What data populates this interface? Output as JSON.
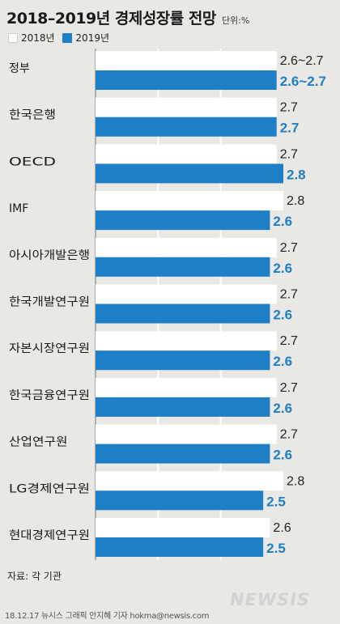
{
  "title": "2018–2019년 경제성장률 전망",
  "unit": "단위:%",
  "legend": [
    "2018년",
    "2019년"
  ],
  "colors": {
    "y2018": "#ffffff",
    "y2019": "#1f7fc6",
    "background": "#e9e8e4",
    "grid": "#ffffff"
  },
  "source": "자료: 각 기관",
  "credit": "18.12.17 뉴시스 그래픽 안지혜 기자 hokma@newsis.com",
  "watermark": "NEWSIS",
  "chart_data": {
    "type": "bar",
    "orientation": "horizontal",
    "title": "2018–2019년 경제성장률 전망",
    "categories": [
      "정부",
      "한국은행",
      "OECD",
      "IMF",
      "아시아개발은행",
      "한국개발연구원",
      "자본시장연구원",
      "한국금융연구원",
      "산업연구원",
      "LG경제연구원",
      "현대경제연구원"
    ],
    "series": [
      {
        "name": "2018년",
        "values": [
          2.7,
          2.7,
          2.7,
          2.8,
          2.7,
          2.7,
          2.7,
          2.7,
          2.7,
          2.8,
          2.6
        ],
        "labels": [
          "2.6~2.7",
          "2.7",
          "2.7",
          "2.8",
          "2.7",
          "2.7",
          "2.7",
          "2.7",
          "2.7",
          "2.8",
          "2.6"
        ]
      },
      {
        "name": "2019년",
        "values": [
          2.7,
          2.7,
          2.8,
          2.6,
          2.6,
          2.6,
          2.6,
          2.6,
          2.6,
          2.5,
          2.5
        ],
        "labels": [
          "2.6~2.7",
          "2.7",
          "2.8",
          "2.6",
          "2.6",
          "2.6",
          "2.6",
          "2.6",
          "2.6",
          "2.5",
          "2.5"
        ]
      }
    ],
    "xlim": [
      0,
      2.8
    ],
    "grid": true,
    "legend_position": "top-left"
  }
}
